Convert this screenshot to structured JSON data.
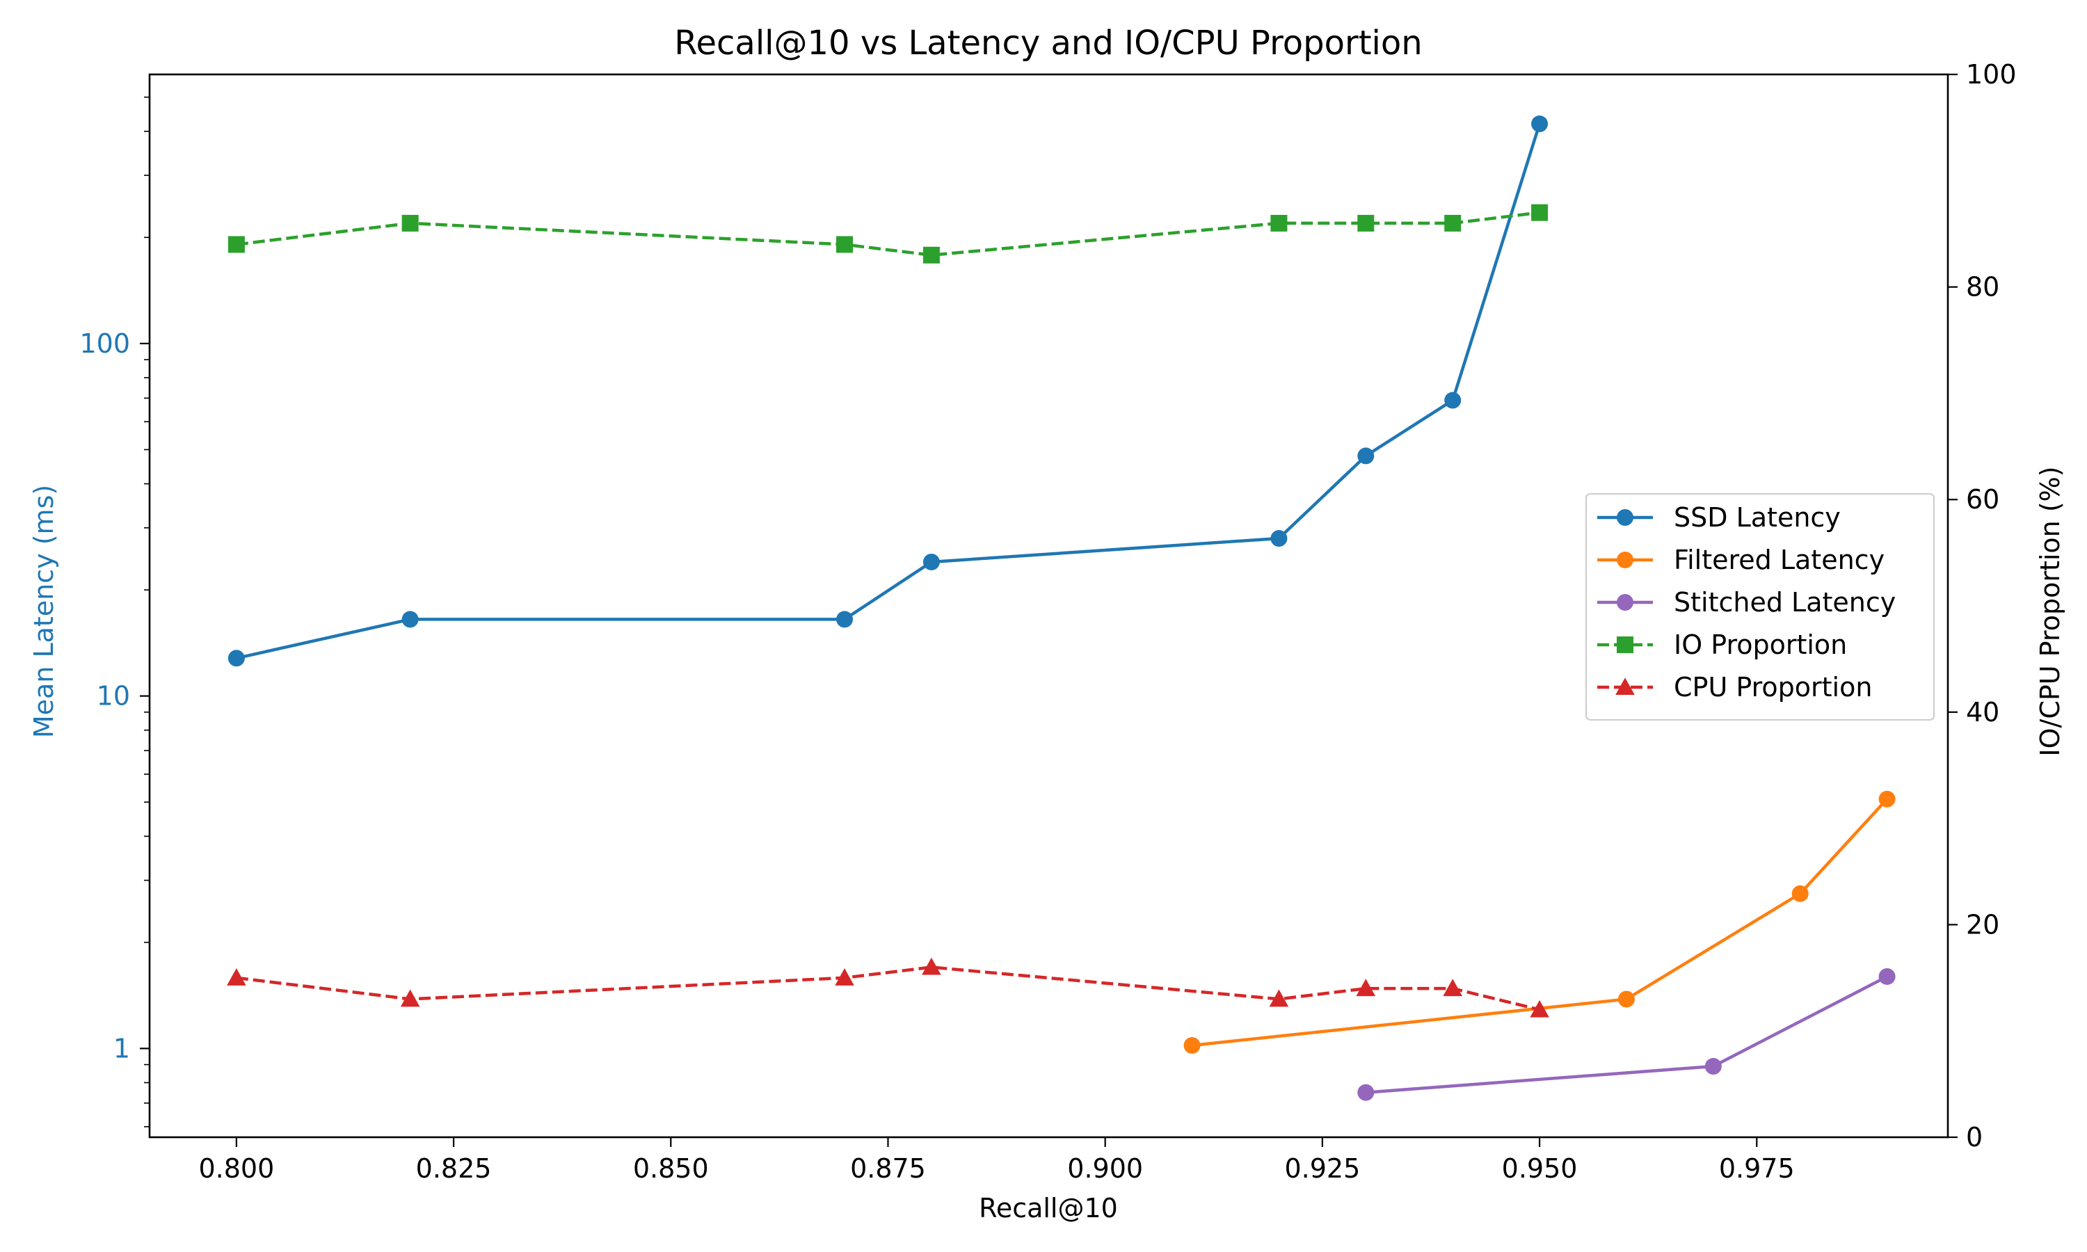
{
  "colors": {
    "ssd": "#1f77b4",
    "filtered": "#ff7f0e",
    "stitched": "#9467bd",
    "io": "#2ca02c",
    "cpu": "#d62728",
    "left_axis": "#1f77b4"
  },
  "chart_data": {
    "type": "line",
    "title": "Recall@10 vs Latency and IO/CPU Proportion",
    "xlabel": "Recall@10",
    "ylabel_left": "Mean Latency (ms)",
    "ylabel_right": "IO/CPU Proportion (%)",
    "xlim": [
      0.79,
      0.997
    ],
    "ylim_left": [
      0.56,
      580
    ],
    "yscale_left": "log",
    "ylim_right": [
      0,
      100
    ],
    "x_ticks": [
      "0.800",
      "0.825",
      "0.850",
      "0.875",
      "0.900",
      "0.925",
      "0.950",
      "0.975"
    ],
    "x_tick_values": [
      0.8,
      0.825,
      0.85,
      0.875,
      0.9,
      0.925,
      0.95,
      0.975
    ],
    "y_left_ticks": [
      "1",
      "10",
      "100"
    ],
    "y_left_tick_values": [
      1,
      10,
      100
    ],
    "y_right_ticks": [
      "0",
      "20",
      "40",
      "60",
      "80",
      "100"
    ],
    "y_right_tick_values": [
      0,
      20,
      40,
      60,
      80,
      100
    ],
    "legend_position": "center-right",
    "series": [
      {
        "name": "SSD Latency",
        "axis": "left",
        "marker": "circle",
        "dashed": false,
        "color_key": "ssd",
        "x": [
          0.8,
          0.82,
          0.87,
          0.88,
          0.92,
          0.93,
          0.94,
          0.95
        ],
        "y": [
          12.8,
          16.5,
          16.5,
          24,
          28,
          48,
          69,
          420
        ]
      },
      {
        "name": "Filtered Latency",
        "axis": "left",
        "marker": "circle",
        "dashed": false,
        "color_key": "filtered",
        "x": [
          0.91,
          0.96,
          0.98,
          0.99
        ],
        "y": [
          1.02,
          1.38,
          2.75,
          5.1
        ]
      },
      {
        "name": "Stitched Latency",
        "axis": "left",
        "marker": "circle",
        "dashed": false,
        "color_key": "stitched",
        "x": [
          0.93,
          0.97,
          0.99
        ],
        "y": [
          0.75,
          0.89,
          1.6
        ]
      },
      {
        "name": "IO Proportion",
        "axis": "right",
        "marker": "square",
        "dashed": true,
        "color_key": "io",
        "x": [
          0.8,
          0.82,
          0.87,
          0.88,
          0.92,
          0.93,
          0.94,
          0.95
        ],
        "y": [
          84,
          86,
          84,
          83,
          86,
          86,
          86,
          87
        ]
      },
      {
        "name": "CPU Proportion",
        "axis": "right",
        "marker": "triangle",
        "dashed": true,
        "color_key": "cpu",
        "x": [
          0.8,
          0.82,
          0.87,
          0.88,
          0.92,
          0.93,
          0.94,
          0.95
        ],
        "y": [
          15,
          13,
          15,
          16,
          13,
          14,
          14,
          12
        ]
      }
    ]
  }
}
